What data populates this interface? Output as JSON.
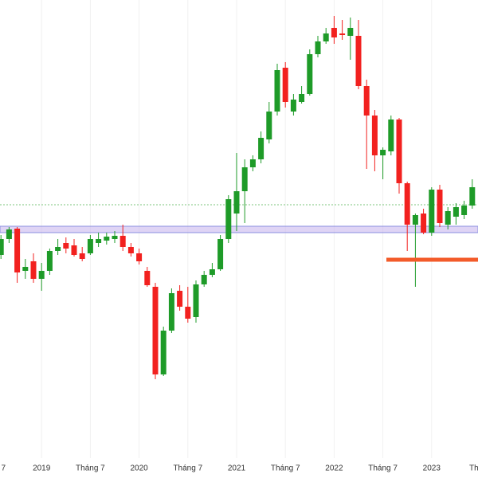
{
  "chart_data": {
    "type": "candlestick",
    "categories": [
      "7",
      null,
      null,
      null,
      null,
      null,
      "2019",
      null,
      null,
      null,
      null,
      null,
      "Tháng 7",
      null,
      null,
      null,
      null,
      null,
      "2020",
      null,
      null,
      null,
      null,
      null,
      "Tháng 7",
      null,
      null,
      null,
      null,
      null,
      "2021",
      null,
      null,
      null,
      null,
      null,
      "Tháng 7",
      null,
      null,
      null,
      null,
      null,
      "2022",
      null,
      null,
      null,
      null,
      null,
      "Tháng 7",
      null,
      null,
      null,
      null,
      null,
      "2023",
      null,
      null,
      null,
      null,
      null,
      "Th"
    ],
    "open": [
      null,
      280,
      300,
      313,
      260,
      272,
      250,
      260,
      285,
      295,
      292,
      282,
      282,
      295,
      298,
      300,
      304,
      290,
      282,
      260,
      240,
      130,
      185,
      235,
      215,
      202,
      243,
      255,
      262,
      300,
      332,
      360,
      390,
      400,
      425,
      460,
      515,
      460,
      472,
      482,
      532,
      548,
      565,
      558,
      555,
      555,
      492,
      455,
      405,
      410,
      450,
      370,
      318,
      332,
      308,
      362,
      318,
      328,
      330,
      342,
      null
    ],
    "high": [
      null,
      305,
      315,
      315,
      275,
      282,
      270,
      288,
      300,
      302,
      300,
      290,
      305,
      308,
      308,
      310,
      318,
      295,
      288,
      265,
      245,
      190,
      238,
      242,
      240,
      248,
      260,
      270,
      305,
      355,
      408,
      400,
      405,
      435,
      472,
      520,
      522,
      482,
      492,
      538,
      555,
      565,
      580,
      575,
      578,
      575,
      500,
      462,
      415,
      455,
      452,
      372,
      332,
      338,
      365,
      368,
      340,
      345,
      348,
      375,
      null
    ],
    "low": [
      null,
      275,
      295,
      245,
      250,
      245,
      235,
      255,
      280,
      282,
      278,
      272,
      280,
      290,
      293,
      295,
      285,
      278,
      268,
      240,
      124,
      128,
      182,
      210,
      195,
      195,
      240,
      252,
      260,
      295,
      310,
      320,
      385,
      395,
      420,
      455,
      465,
      455,
      470,
      480,
      528,
      545,
      545,
      550,
      525,
      488,
      388,
      385,
      375,
      405,
      357,
      285,
      240,
      306,
      304,
      315,
      312,
      318,
      325,
      338,
      null
    ],
    "close": [
      null,
      300,
      312,
      258,
      265,
      250,
      260,
      285,
      290,
      288,
      280,
      275,
      300,
      300,
      303,
      304,
      290,
      282,
      272,
      242,
      130,
      185,
      232,
      215,
      200,
      243,
      255,
      262,
      300,
      350,
      360,
      390,
      400,
      427,
      460,
      512,
      472,
      475,
      482,
      532,
      548,
      558,
      553,
      556,
      565,
      492,
      455,
      405,
      412,
      450,
      370,
      318,
      330,
      308,
      362,
      320,
      335,
      340,
      342,
      365,
      null
    ],
    "up_color": "#1e9b28",
    "down_color": "#f2211f",
    "ylim": [
      0,
      600
    ]
  }
}
